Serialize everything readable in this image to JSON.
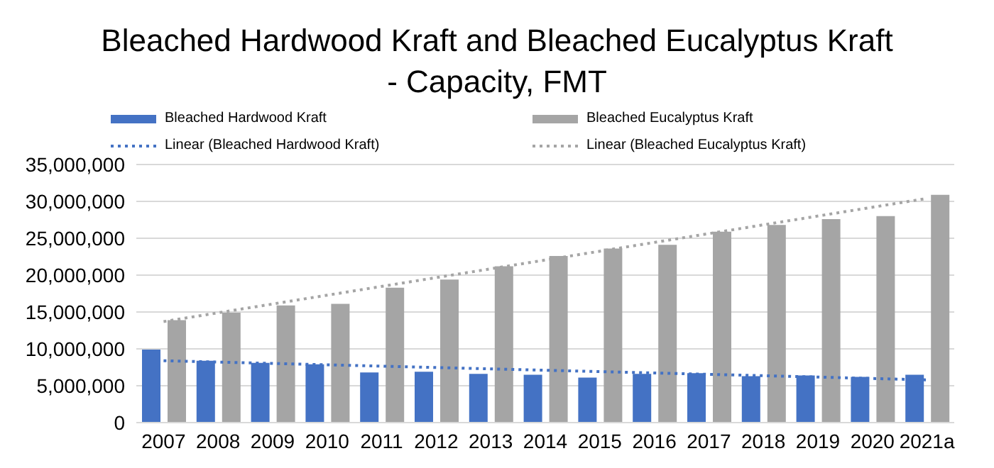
{
  "chart_data": {
    "type": "bar",
    "title": "Bleached Hardwood Kraft and Bleached Eucalyptus Kraft - Capacity, FMT",
    "categories": [
      "2007",
      "2008",
      "2009",
      "2010",
      "2011",
      "2012",
      "2013",
      "2014",
      "2015",
      "2016",
      "2017",
      "2018",
      "2019",
      "2020",
      "2021a"
    ],
    "series": [
      {
        "name": "Bleached Hardwood Kraft",
        "color": "#4472c4",
        "values": [
          9900000,
          8400000,
          8100000,
          7900000,
          6800000,
          6900000,
          6600000,
          6500000,
          6100000,
          6600000,
          6700000,
          6300000,
          6400000,
          6200000,
          6500000
        ]
      },
      {
        "name": "Bleached Eucalyptus Kraft",
        "color": "#a5a5a5",
        "values": [
          13900000,
          14900000,
          15900000,
          16100000,
          18300000,
          19400000,
          21200000,
          22600000,
          23600000,
          24100000,
          25900000,
          26800000,
          27600000,
          28000000,
          30900000
        ]
      },
      {
        "name": "Linear (Bleached Hardwood Kraft)",
        "type": "line",
        "line_style": "dotted",
        "color": "#4472c4",
        "values": [
          8400000,
          null,
          null,
          null,
          null,
          null,
          null,
          null,
          null,
          null,
          null,
          null,
          null,
          null,
          5800000
        ]
      },
      {
        "name": "Linear (Bleached Eucalyptus Kraft)",
        "type": "line",
        "line_style": "dotted",
        "color": "#a5a5a5",
        "values": [
          13700000,
          null,
          null,
          null,
          null,
          null,
          null,
          null,
          null,
          null,
          null,
          null,
          null,
          null,
          30400000
        ]
      }
    ],
    "ylim": [
      0,
      35000000
    ],
    "yticks": [
      0,
      {
        "value": 5000000,
        "label": "5,000,000"
      },
      {
        "value": 10000000,
        "label": "10,000,000"
      },
      {
        "value": 15000000,
        "label": "15,000,000"
      },
      {
        "value": 20000000,
        "label": "20,000,000"
      },
      {
        "value": 25000000,
        "label": "25,000,000"
      },
      {
        "value": 30000000,
        "label": "30,000,000"
      },
      {
        "value": 35000000,
        "label": "35,000,000"
      }
    ],
    "grid": "y",
    "legend": "top",
    "marker": "none"
  }
}
